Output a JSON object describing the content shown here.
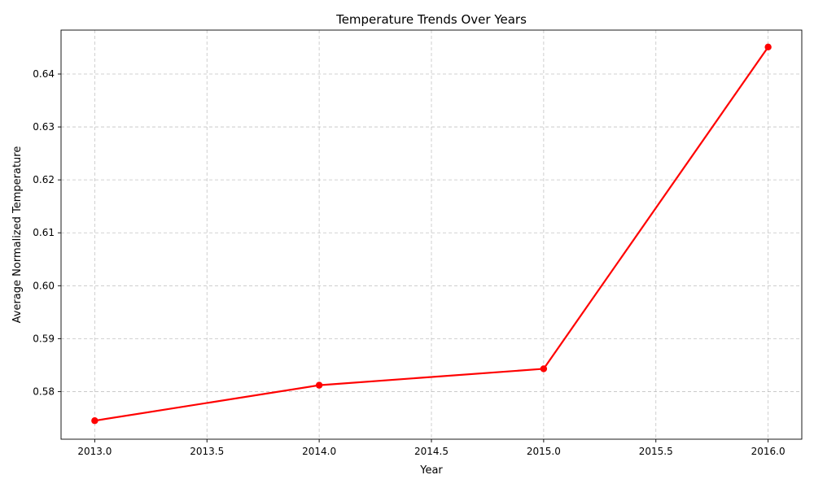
{
  "chart_data": {
    "type": "line",
    "title": "Temperature Trends Over Years",
    "xlabel": "Year",
    "ylabel": "Average Normalized Temperature",
    "xlim": [
      2012.85,
      2016.15
    ],
    "ylim": [
      0.571,
      0.6483
    ],
    "x_ticks": [
      "2013.0",
      "2013.5",
      "2014.0",
      "2014.5",
      "2015.0",
      "2015.5",
      "2016.0"
    ],
    "y_ticks": [
      "0.58",
      "0.59",
      "0.60",
      "0.61",
      "0.62",
      "0.63",
      "0.64"
    ],
    "grid": true,
    "series": [
      {
        "color": "#ff0000",
        "marker": "circle",
        "x": [
          2013,
          2014,
          2015,
          2016
        ],
        "y": [
          0.5745,
          0.5812,
          0.5843,
          0.6451
        ]
      }
    ]
  }
}
